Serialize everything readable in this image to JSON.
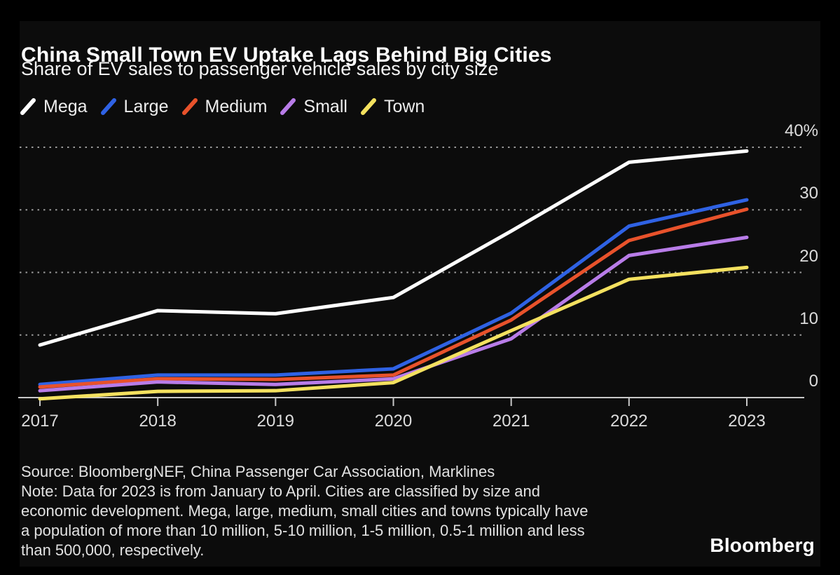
{
  "chart_data": {
    "type": "line",
    "title": "China Small Town EV Uptake Lags Behind Big Cities",
    "subtitle": "Share of EV sales to passenger vehicle sales by city size",
    "categories": [
      "2017",
      "2018",
      "2019",
      "2020",
      "2021",
      "2022",
      "2023"
    ],
    "unit": "%",
    "ylim": [
      -1,
      42
    ],
    "grid": "horizontal dotted lines at 10, 20, 30, 40",
    "legend_position": "top-left",
    "y_ticks": [
      {
        "label": "40%",
        "value": 40
      },
      {
        "label": "30",
        "value": 30
      },
      {
        "label": "20",
        "value": 20
      },
      {
        "label": "10",
        "value": 10
      },
      {
        "label": "0",
        "value": 0
      }
    ],
    "series": [
      {
        "name": "Mega",
        "color": "#ffffff",
        "values": [
          8.4,
          13.9,
          13.4,
          16.0,
          26.6,
          37.6,
          39.4
        ]
      },
      {
        "name": "Large",
        "color": "#2f62e4",
        "values": [
          2.1,
          3.6,
          3.6,
          4.6,
          13.5,
          27.4,
          31.6
        ]
      },
      {
        "name": "Medium",
        "color": "#e8522b",
        "values": [
          1.7,
          3.0,
          2.9,
          3.6,
          12.4,
          25.1,
          30.1
        ]
      },
      {
        "name": "Small",
        "color": "#b87ce8",
        "values": [
          1.1,
          2.5,
          2.1,
          3.0,
          9.4,
          22.7,
          25.6
        ]
      },
      {
        "name": "Town",
        "color": "#f4e15f",
        "values": [
          -0.2,
          1.0,
          1.1,
          2.4,
          10.7,
          18.9,
          20.8
        ]
      }
    ]
  },
  "footer": {
    "lines": [
      "Source: BloombergNEF, China Passenger Car Association, Marklines",
      "Note: Data for 2023 is from January to April. Cities are classified by size and",
      "economic development. Mega, large, medium, small cities and towns typically have",
      "a population of more than 10 million, 5-10 million, 1-5 million, 0.5-1 million and less",
      "than 500,000, respectively."
    ],
    "brand": "Bloomberg"
  },
  "colors": {
    "background": "#000000",
    "card": "#0c0c0c",
    "axis": "#c8c8c8",
    "gridline": "#9a9a9a",
    "title_text": "#ffffff",
    "axis_text": "#dcdcdc",
    "note_text": "#e2e2e2"
  }
}
